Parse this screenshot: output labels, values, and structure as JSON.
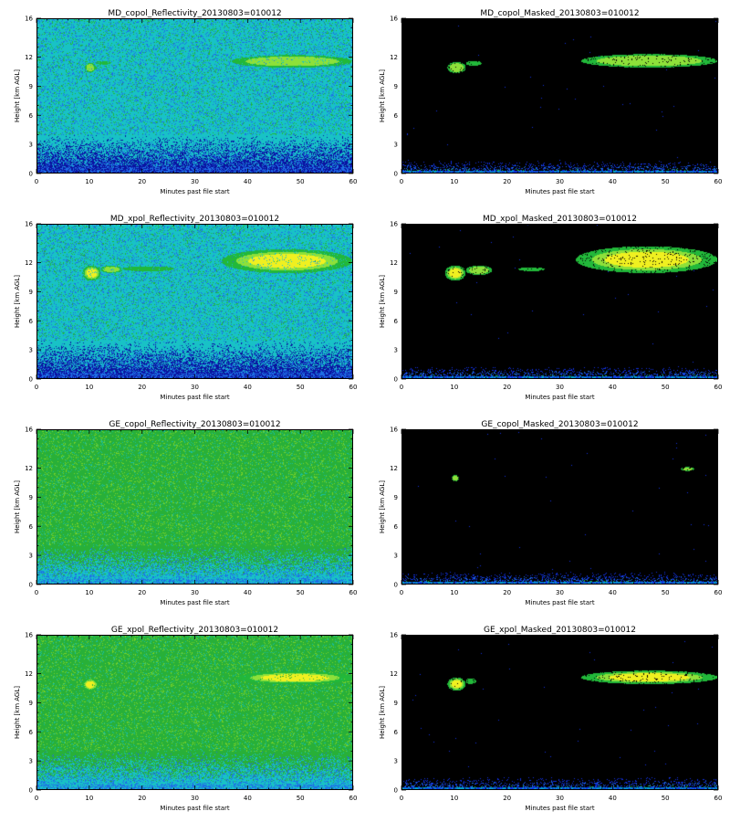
{
  "chart_data": [
    {
      "type": "heatmap",
      "title": "MD_copol_Reflectivity_20130803=010012",
      "xlabel": "Minutes past file start",
      "ylabel": "Height [km AGL]",
      "xlim": [
        0,
        60
      ],
      "ylim": [
        0,
        16
      ],
      "xticks": [
        0,
        10,
        20,
        30,
        40,
        50,
        60
      ],
      "yticks": [
        0,
        3,
        6,
        9,
        12,
        16
      ],
      "background": "raw",
      "colors": {
        "noise": "#18c2c6",
        "low_noise": "#1024d8",
        "cloud": "#22b83a",
        "core": "#8ee03a",
        "peak": "#f0f020"
      },
      "features": [
        {
          "x_range": [
            9,
            11
          ],
          "y_range": [
            10.5,
            11.5
          ],
          "intensity": "medium"
        },
        {
          "x_range": [
            11,
            14
          ],
          "y_range": [
            11.3,
            11.7
          ],
          "intensity": "low"
        },
        {
          "x_range": [
            37,
            60
          ],
          "y_range": [
            11.0,
            12.3
          ],
          "intensity": "medium"
        }
      ]
    },
    {
      "type": "heatmap",
      "title": "MD_copol_Masked_20130803=010012",
      "xlabel": "Minutes past file start",
      "ylabel": "Height [km AGL]",
      "xlim": [
        0,
        60
      ],
      "ylim": [
        0,
        16
      ],
      "xticks": [
        0,
        10,
        20,
        30,
        40,
        50,
        60
      ],
      "yticks": [
        0,
        3,
        6,
        9,
        12,
        16
      ],
      "background": "masked",
      "colors": {
        "noise": "#000000",
        "low_noise": "#1030e0",
        "cloud": "#22b83a",
        "core": "#8ee03a",
        "peak": "#f0f020"
      },
      "features": [
        {
          "x_range": [
            8.5,
            12
          ],
          "y_range": [
            10.4,
            11.6
          ],
          "intensity": "medium"
        },
        {
          "x_range": [
            12,
            15
          ],
          "y_range": [
            11.2,
            11.7
          ],
          "intensity": "low"
        },
        {
          "x_range": [
            34,
            60
          ],
          "y_range": [
            11.0,
            12.4
          ],
          "intensity": "medium"
        }
      ]
    },
    {
      "type": "heatmap",
      "title": "MD_xpol_Reflectivity_20130803=010012",
      "xlabel": "Minutes past file start",
      "ylabel": "Height [km AGL]",
      "xlim": [
        0,
        60
      ],
      "ylim": [
        0,
        16
      ],
      "xticks": [
        0,
        10,
        20,
        30,
        40,
        50,
        60
      ],
      "yticks": [
        0,
        3,
        6,
        9,
        12,
        16
      ],
      "background": "raw",
      "colors": {
        "noise": "#18c2c6",
        "low_noise": "#1024d8",
        "cloud": "#22b83a",
        "core": "#8ee03a",
        "peak": "#f0f020"
      },
      "features": [
        {
          "x_range": [
            8.5,
            12
          ],
          "y_range": [
            10.2,
            11.8
          ],
          "intensity": "high"
        },
        {
          "x_range": [
            12,
            16
          ],
          "y_range": [
            11.0,
            11.8
          ],
          "intensity": "medium"
        },
        {
          "x_range": [
            16,
            26
          ],
          "y_range": [
            11.2,
            11.7
          ],
          "intensity": "low"
        },
        {
          "x_range": [
            35,
            60
          ],
          "y_range": [
            11.0,
            13.5
          ],
          "intensity": "high"
        }
      ]
    },
    {
      "type": "heatmap",
      "title": "MD_xpol_Masked_20130803=010012",
      "xlabel": "Minutes past file start",
      "ylabel": "Height [km AGL]",
      "xlim": [
        0,
        60
      ],
      "ylim": [
        0,
        16
      ],
      "xticks": [
        0,
        10,
        20,
        30,
        40,
        50,
        60
      ],
      "yticks": [
        0,
        3,
        6,
        9,
        12,
        16
      ],
      "background": "masked",
      "colors": {
        "noise": "#000000",
        "low_noise": "#1030e0",
        "cloud": "#22b83a",
        "core": "#8ee03a",
        "peak": "#f0f020"
      },
      "features": [
        {
          "x_range": [
            8,
            12
          ],
          "y_range": [
            10.2,
            11.8
          ],
          "intensity": "high"
        },
        {
          "x_range": [
            12,
            17
          ],
          "y_range": [
            10.8,
            11.8
          ],
          "intensity": "medium"
        },
        {
          "x_range": [
            22,
            27
          ],
          "y_range": [
            11.2,
            11.6
          ],
          "intensity": "low"
        },
        {
          "x_range": [
            33,
            60
          ],
          "y_range": [
            11.0,
            13.8
          ],
          "intensity": "high"
        }
      ]
    },
    {
      "type": "heatmap",
      "title": "GE_copol_Reflectivity_20130803=010012",
      "xlabel": "Minutes past file start",
      "ylabel": "Height [km AGL]",
      "xlim": [
        0,
        60
      ],
      "ylim": [
        0,
        16
      ],
      "xticks": [
        0,
        10,
        20,
        30,
        40,
        50,
        60
      ],
      "yticks": [
        0,
        3,
        6,
        9,
        12,
        16
      ],
      "background": "raw-green",
      "colors": {
        "noise": "#28b038",
        "low_noise": "#18c2c6",
        "cloud": "#22b83a",
        "core": "#8ee03a",
        "peak": "#f0f020"
      },
      "features": [
        {
          "x_range": [
            9.5,
            10.5
          ],
          "y_range": [
            10.8,
            11.3
          ],
          "intensity": "low"
        }
      ]
    },
    {
      "type": "heatmap",
      "title": "GE_copol_Masked_20130803=010012",
      "xlabel": "Minutes past file start",
      "ylabel": "Height [km AGL]",
      "xlim": [
        0,
        60
      ],
      "ylim": [
        0,
        16
      ],
      "xticks": [
        0,
        10,
        20,
        30,
        40,
        50,
        60
      ],
      "yticks": [
        0,
        3,
        6,
        9,
        12,
        16
      ],
      "background": "masked",
      "colors": {
        "noise": "#000000",
        "low_noise": "#1030e0",
        "cloud": "#22b83a",
        "core": "#8ee03a",
        "peak": "#f0f020"
      },
      "features": [
        {
          "x_range": [
            9.3,
            10.7
          ],
          "y_range": [
            10.7,
            11.4
          ],
          "intensity": "medium"
        },
        {
          "x_range": [
            53,
            55.5
          ],
          "y_range": [
            11.8,
            12.2
          ],
          "intensity": "medium"
        }
      ]
    },
    {
      "type": "heatmap",
      "title": "GE_xpol_Reflectivity_20130803=010012",
      "xlabel": "Minutes past file start",
      "ylabel": "Height [km AGL]",
      "xlim": [
        0,
        60
      ],
      "ylim": [
        0,
        16
      ],
      "xticks": [
        0,
        10,
        20,
        30,
        40,
        50,
        60
      ],
      "yticks": [
        0,
        3,
        6,
        9,
        12,
        16
      ],
      "background": "raw-green",
      "colors": {
        "noise": "#28b038",
        "low_noise": "#18c2c6",
        "cloud": "#22b83a",
        "core": "#8ee03a",
        "peak": "#f0f020"
      },
      "features": [
        {
          "x_range": [
            8.5,
            11.5
          ],
          "y_range": [
            10.3,
            11.6
          ],
          "intensity": "high"
        },
        {
          "x_range": [
            38,
            60
          ],
          "y_range": [
            11.0,
            12.3
          ],
          "intensity": "high"
        }
      ]
    },
    {
      "type": "heatmap",
      "title": "GE_xpol_Masked_20130803=010012",
      "xlabel": "Minutes past file start",
      "ylabel": "Height [km AGL]",
      "xlim": [
        0,
        60
      ],
      "ylim": [
        0,
        16
      ],
      "xticks": [
        0,
        10,
        20,
        30,
        40,
        50,
        60
      ],
      "yticks": [
        0,
        3,
        6,
        9,
        12,
        16
      ],
      "background": "masked",
      "colors": {
        "noise": "#000000",
        "low_noise": "#1030e0",
        "cloud": "#22b83a",
        "core": "#8ee03a",
        "peak": "#f0f020"
      },
      "features": [
        {
          "x_range": [
            8.5,
            12
          ],
          "y_range": [
            10.3,
            11.7
          ],
          "intensity": "high"
        },
        {
          "x_range": [
            12,
            14
          ],
          "y_range": [
            11.0,
            11.6
          ],
          "intensity": "low"
        },
        {
          "x_range": [
            34,
            60
          ],
          "y_range": [
            11.0,
            12.4
          ],
          "intensity": "high"
        }
      ]
    }
  ]
}
